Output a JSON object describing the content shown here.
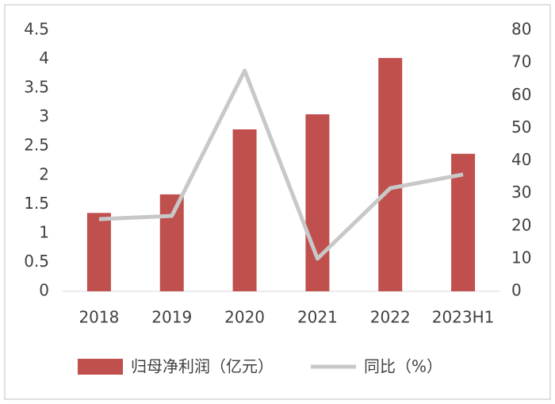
{
  "chart_data": {
    "type": "combo",
    "categories": [
      "2018",
      "2019",
      "2020",
      "2021",
      "2022",
      "2023H1"
    ],
    "series": [
      {
        "name": "归母净利润（亿元）",
        "type": "bar",
        "color": "#c0504d",
        "values": [
          1.35,
          1.67,
          2.79,
          3.05,
          4.02,
          2.37
        ]
      },
      {
        "name": "同比（%）",
        "type": "line",
        "axis": "y2",
        "color": "#c8c8c8",
        "values": [
          22.1,
          23.1,
          67.6,
          10,
          31.6,
          35.8
        ]
      }
    ],
    "ylim": [
      0,
      4.5
    ],
    "yticks": [
      0,
      0.5,
      1,
      1.5,
      2,
      2.5,
      3,
      3.5,
      4,
      4.5
    ],
    "y2lim": [
      0,
      80
    ],
    "y2ticks": [
      0,
      10,
      20,
      30,
      40,
      50,
      60,
      70,
      80
    ],
    "grid": false,
    "legend": "bottom"
  }
}
